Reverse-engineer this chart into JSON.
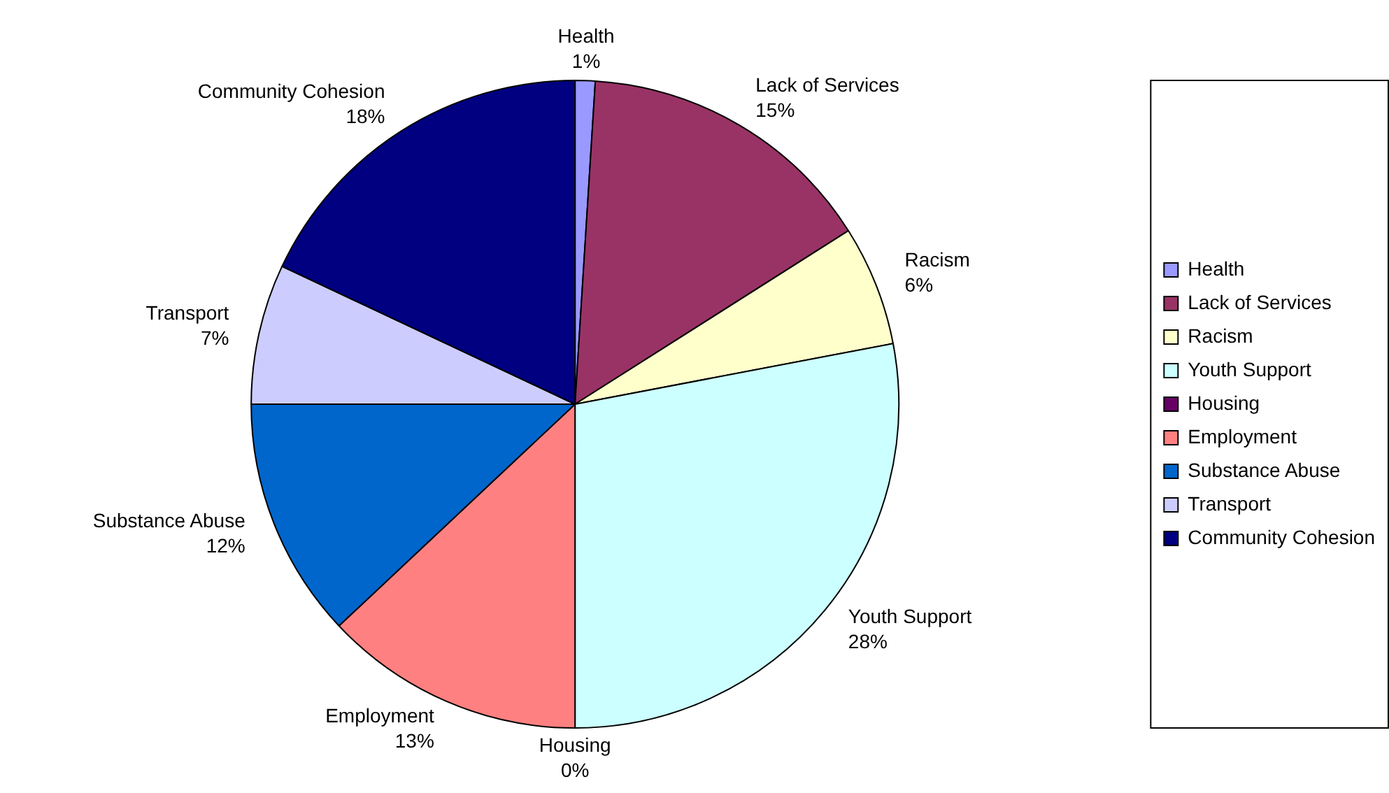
{
  "chart_data": {
    "type": "pie",
    "categories": [
      "Health",
      "Lack of Services",
      "Racism",
      "Youth Support",
      "Housing",
      "Employment",
      "Substance Abuse",
      "Transport",
      "Community Cohesion"
    ],
    "values": [
      1,
      15,
      6,
      28,
      0,
      13,
      12,
      7,
      18
    ],
    "value_labels": [
      "1%",
      "15%",
      "6%",
      "28%",
      "0%",
      "13%",
      "12%",
      "7%",
      "18%"
    ],
    "colors": [
      "#9999ff",
      "#993366",
      "#ffffcc",
      "#ccffff",
      "#660066",
      "#ff8080",
      "#0066cc",
      "#ccccff",
      "#000080"
    ],
    "legend": "right"
  }
}
